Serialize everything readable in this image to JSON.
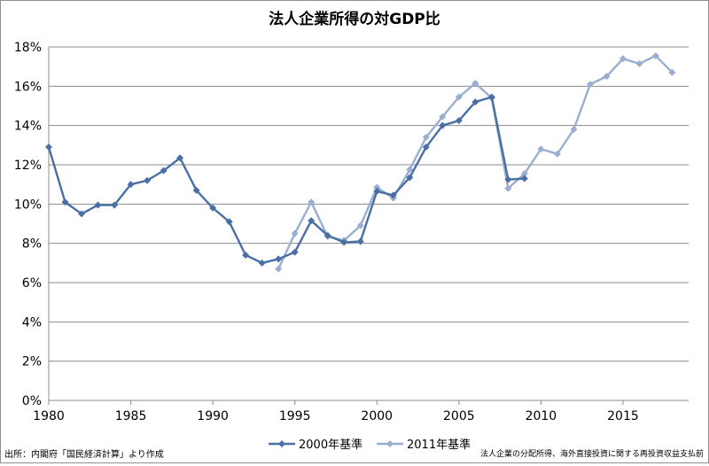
{
  "chart_data": {
    "type": "line",
    "title": "法人企業所得の対GDP比",
    "xlabel": "",
    "ylabel": "",
    "xlim": [
      1980,
      2019
    ],
    "ylim": [
      0,
      18
    ],
    "x_ticks": [
      1980,
      1985,
      1990,
      1995,
      2000,
      2005,
      2010,
      2015
    ],
    "y_ticks": [
      "0%",
      "2%",
      "4%",
      "6%",
      "8%",
      "10%",
      "12%",
      "14%",
      "16%",
      "18%"
    ],
    "grid": "horizontal",
    "legend": "bottom",
    "series": [
      {
        "name": "2000年基準",
        "color": "#4a6fa5",
        "marker": "diamond",
        "x": [
          1980,
          1981,
          1982,
          1983,
          1984,
          1985,
          1986,
          1987,
          1988,
          1989,
          1990,
          1991,
          1992,
          1993,
          1994,
          1995,
          1996,
          1997,
          1998,
          1999,
          2000,
          2001,
          2002,
          2003,
          2004,
          2005,
          2006,
          2007,
          2008,
          2009
        ],
        "values": [
          12.9,
          10.1,
          9.5,
          9.95,
          9.95,
          11.0,
          11.2,
          11.7,
          12.35,
          10.7,
          9.8,
          9.1,
          7.4,
          7.0,
          7.2,
          7.55,
          9.15,
          8.4,
          8.05,
          8.1,
          10.65,
          10.45,
          11.35,
          12.9,
          14.0,
          14.25,
          15.2,
          15.45,
          11.25,
          11.3
        ]
      },
      {
        "name": "2011年基準",
        "color": "#9aaed0",
        "marker": "diamond",
        "x": [
          1994,
          1995,
          1996,
          1997,
          1998,
          1999,
          2000,
          2001,
          2002,
          2003,
          2004,
          2005,
          2006,
          2007,
          2008,
          2009,
          2010,
          2011,
          2012,
          2013,
          2014,
          2015,
          2016,
          2017,
          2018
        ],
        "values": [
          6.7,
          8.5,
          10.1,
          8.35,
          8.15,
          8.9,
          10.85,
          10.3,
          11.75,
          13.4,
          14.45,
          15.45,
          16.15,
          15.4,
          10.8,
          11.55,
          12.8,
          12.55,
          13.8,
          16.1,
          16.5,
          17.4,
          17.15,
          17.55,
          16.7
        ]
      }
    ]
  },
  "notes": {
    "source": "出所：内閣府「国民経済計算」より作成",
    "definition": "法人企業の分配所得、海外直接投資に関する再投資収益支払前"
  }
}
